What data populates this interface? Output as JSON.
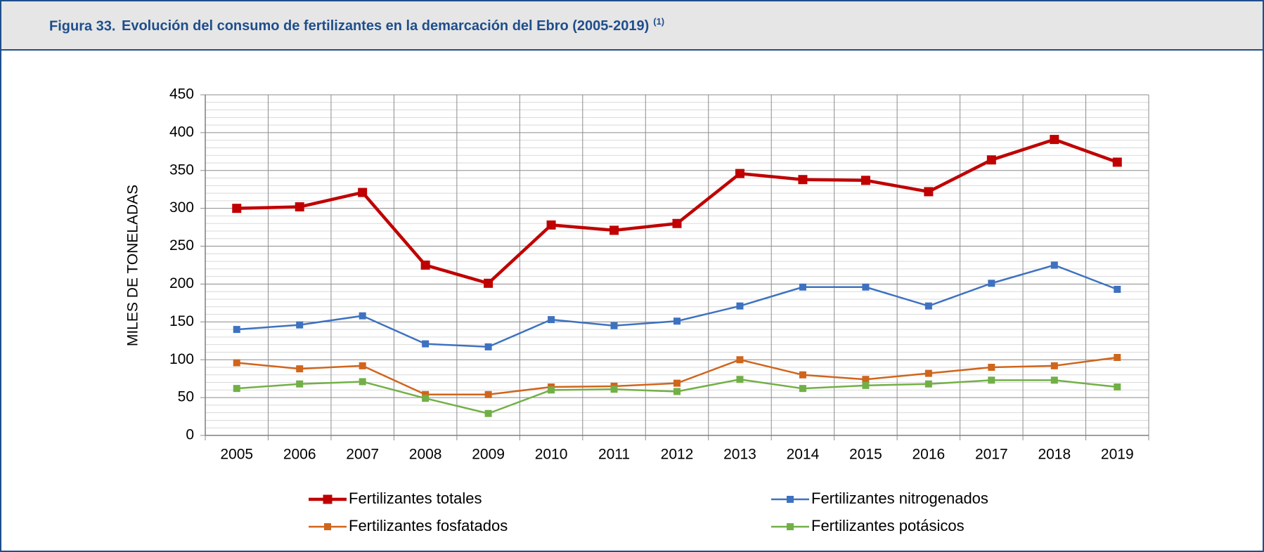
{
  "chart_data": {
    "type": "line",
    "figure_label": "Figura 33.",
    "title": "Evolución del consumo de fertilizantes en la demarcación del Ebro (2005-2019)",
    "title_note": "(1)",
    "ylabel": "MILES DE TONELADAS",
    "categories": [
      "2005",
      "2006",
      "2007",
      "2008",
      "2009",
      "2010",
      "2011",
      "2012",
      "2013",
      "2014",
      "2015",
      "2016",
      "2017",
      "2018",
      "2019"
    ],
    "series": [
      {
        "name": "Fertilizantes totales",
        "color": "#c00000",
        "values": [
          300,
          302,
          321,
          225,
          201,
          278,
          271,
          280,
          346,
          338,
          337,
          322,
          364,
          391,
          361
        ]
      },
      {
        "name": "Fertilizantes nitrogenados",
        "color": "#3e72c0",
        "values": [
          140,
          146,
          158,
          121,
          117,
          153,
          145,
          151,
          171,
          196,
          196,
          171,
          201,
          225,
          193
        ]
      },
      {
        "name": "Fertilizantes fosfatados",
        "color": "#d0651c",
        "values": [
          96,
          88,
          92,
          54,
          54,
          64,
          65,
          69,
          100,
          80,
          74,
          82,
          90,
          92,
          103
        ]
      },
      {
        "name": "Fertilizantes potásicos",
        "color": "#72b047",
        "values": [
          62,
          68,
          71,
          49,
          29,
          60,
          61,
          58,
          74,
          62,
          66,
          68,
          73,
          73,
          64
        ]
      }
    ],
    "ylim": [
      0,
      450
    ],
    "yticks": [
      0,
      50,
      100,
      150,
      200,
      250,
      300,
      350,
      400,
      450
    ],
    "minor_yticks": [
      10,
      20,
      30,
      40,
      60,
      70,
      80,
      90,
      110,
      120,
      130,
      140,
      160,
      170,
      180,
      190,
      210,
      220,
      230,
      240,
      260,
      270,
      280,
      290,
      310,
      320,
      330,
      340,
      360,
      370,
      380,
      390,
      410,
      420,
      430,
      440
    ],
    "grid": true
  }
}
